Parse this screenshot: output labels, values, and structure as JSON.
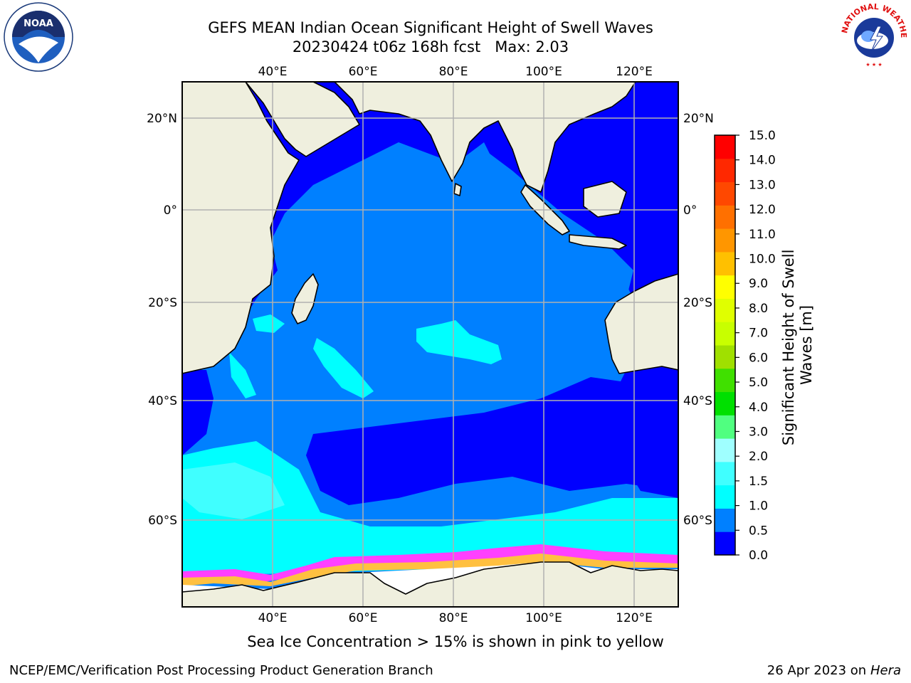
{
  "title_line1": "GEFS MEAN Indian Ocean Significant Height of Swell Waves",
  "title_line2": "20230424 t06z 168h fcst   Max: 2.03",
  "ice_note": "Sea Ice Concentration > 15% is shown in pink to yellow",
  "footer_left": "NCEP/EMC/Verification Post Processing Product Generation Branch",
  "footer_right_prefix": "26 Apr 2023 on ",
  "footer_right_host": "Hera",
  "logos": {
    "left": "NOAA",
    "right": "NATIONAL WEATHER SERVICE"
  },
  "map": {
    "lon_labels": [
      "40°E",
      "60°E",
      "80°E",
      "100°E",
      "120°E"
    ],
    "lat_labels": [
      "20°N",
      "0°",
      "20°S",
      "40°S",
      "60°S"
    ]
  },
  "colorbar": {
    "label": "Significant Height of Swell Waves [m]",
    "ticks": [
      "0.0",
      "0.5",
      "1.0",
      "1.5",
      "2.0",
      "3.0",
      "4.0",
      "5.0",
      "6.0",
      "7.0",
      "8.0",
      "9.0",
      "10.0",
      "11.0",
      "12.0",
      "13.0",
      "14.0",
      "15.0"
    ],
    "colors": [
      "#0000ff",
      "#0080ff",
      "#00ffff",
      "#40ffff",
      "#9fffff",
      "#50ff80",
      "#00e000",
      "#40e000",
      "#a0e000",
      "#c8ff00",
      "#e0ff00",
      "#ffff00",
      "#ffc000",
      "#ff9600",
      "#ff7000",
      "#ff4800",
      "#ff2800",
      "#ff0000"
    ]
  },
  "colors": {
    "land": "#efefde",
    "ocean_blue": "#0000ff",
    "ocean_mid": "#0080ff",
    "ocean_cyan": "#00ffff",
    "ice_pink": "#ff40ff",
    "ice_yellow": "#ffc040",
    "grid": "#b0b0b0"
  }
}
